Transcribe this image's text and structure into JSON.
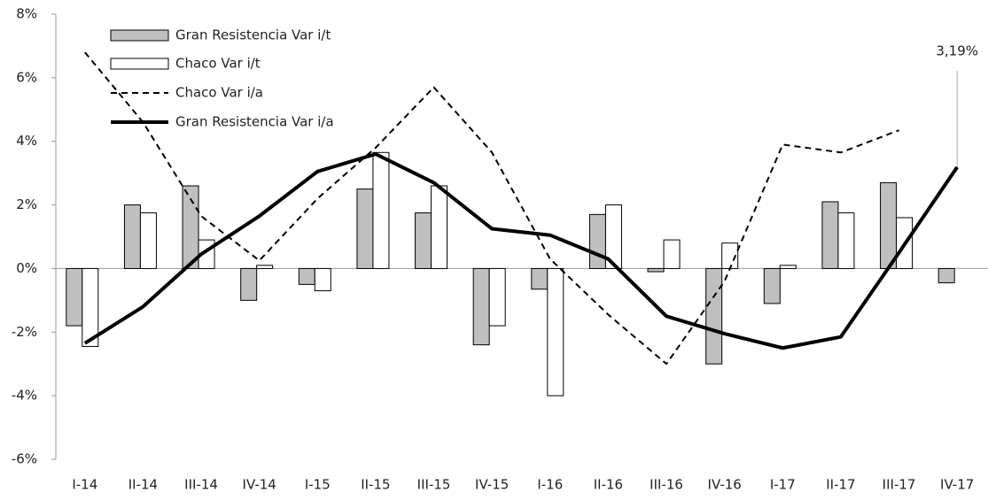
{
  "chart_data": {
    "type": "bar_line",
    "categories": [
      "I-14",
      "II-14",
      "III-14",
      "IV-14",
      "I-15",
      "II-15",
      "III-15",
      "IV-15",
      "I-16",
      "II-16",
      "III-16",
      "IV-16",
      "I-17",
      "II-17",
      "III-17",
      "IV-17"
    ],
    "series": [
      {
        "name": "Gran Resistencia Var i/t",
        "kind": "bar",
        "color": "#bfbfbf",
        "values": [
          -1.8,
          2.0,
          2.6,
          -1.0,
          -0.5,
          2.5,
          1.75,
          -2.4,
          -0.65,
          1.7,
          -0.1,
          -3.0,
          -1.1,
          2.1,
          2.7,
          -0.45
        ]
      },
      {
        "name": "Chaco Var i/t",
        "kind": "bar",
        "color": "#ffffff",
        "values": [
          -2.45,
          1.75,
          0.9,
          0.1,
          -0.7,
          3.65,
          2.6,
          -1.8,
          -4.0,
          2.0,
          0.9,
          0.8,
          0.1,
          1.75,
          1.6,
          null
        ]
      },
      {
        "name": "Chaco Var i/a",
        "kind": "dashed",
        "color": "#000000",
        "values": [
          6.8,
          4.6,
          1.65,
          0.25,
          2.2,
          3.8,
          5.7,
          3.65,
          0.3,
          -1.45,
          -3.0,
          -0.4,
          3.9,
          3.65,
          4.35,
          null
        ]
      },
      {
        "name": "Gran Resistencia Var i/a",
        "kind": "solid",
        "color": "#000000",
        "values": [
          -2.35,
          -1.2,
          0.45,
          1.65,
          3.05,
          3.6,
          2.7,
          1.25,
          1.05,
          0.3,
          -1.5,
          -2.05,
          -2.5,
          -2.15,
          0.5,
          3.19
        ],
        "value_labels": [
          null,
          null,
          null,
          null,
          null,
          null,
          null,
          null,
          null,
          null,
          null,
          null,
          null,
          null,
          null,
          "3,19%"
        ]
      }
    ],
    "ylim": [
      -6,
      8
    ],
    "yticks": [
      {
        "value": -6,
        "label": "-6%"
      },
      {
        "value": -4,
        "label": "-4%"
      },
      {
        "value": -2,
        "label": "-2%"
      },
      {
        "value": 0,
        "label": "0%"
      },
      {
        "value": 2,
        "label": "2%"
      },
      {
        "value": 4,
        "label": "4%"
      },
      {
        "value": 6,
        "label": "6%"
      },
      {
        "value": 8,
        "label": "8%"
      }
    ],
    "legend": "upper left"
  }
}
